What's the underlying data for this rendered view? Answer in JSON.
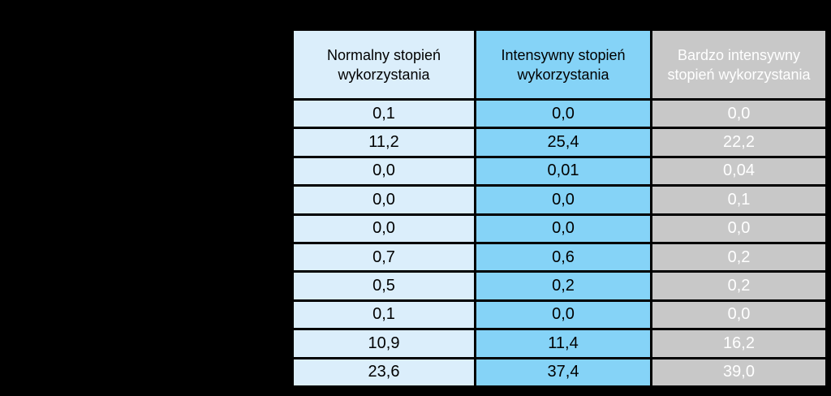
{
  "table": {
    "headers": [
      "Normalny stopień wykorzystania",
      "Intensywny stopień wykorzystania",
      "Bardzo intensywny stopień wykorzystania"
    ],
    "rows": [
      [
        "0,1",
        "0,0",
        "0,0"
      ],
      [
        "11,2",
        "25,4",
        "22,2"
      ],
      [
        "0,0",
        "0,01",
        "0,04"
      ],
      [
        "0,0",
        "0,0",
        "0,1"
      ],
      [
        "0,0",
        "0,0",
        "0,0"
      ],
      [
        "0,7",
        "0,6",
        "0,2"
      ],
      [
        "0,5",
        "0,2",
        "0,2"
      ],
      [
        "0,1",
        "0,0",
        "0,0"
      ],
      [
        "10,9",
        "11,4",
        "16,2"
      ],
      [
        "23,6",
        "37,4",
        "39,0"
      ]
    ],
    "column_colors": [
      "#dbeefb",
      "#85d3f7",
      "#c8c8c8"
    ]
  }
}
